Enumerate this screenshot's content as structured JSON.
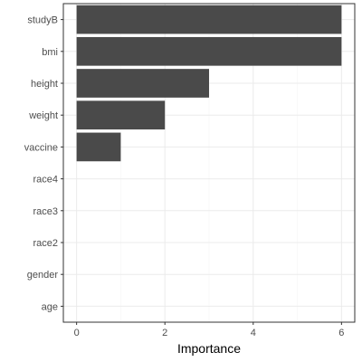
{
  "chart_data": {
    "type": "bar",
    "orientation": "horizontal",
    "categories": [
      "studyB",
      "bmi",
      "height",
      "weight",
      "vaccine",
      "race4",
      "race3",
      "race2",
      "gender",
      "age"
    ],
    "values": [
      6,
      6,
      3,
      2,
      1,
      0,
      0,
      0,
      0,
      0
    ],
    "xlabel": "Importance",
    "ylabel": "",
    "xlim": [
      0,
      6
    ],
    "xticks": [
      0,
      2,
      4,
      6
    ],
    "grid": true,
    "colors": {
      "bar": "#4a4a4a",
      "panel_border": "#333333",
      "grid_major": "#ebebeb",
      "grid_minor": "#f5f5f5"
    }
  }
}
